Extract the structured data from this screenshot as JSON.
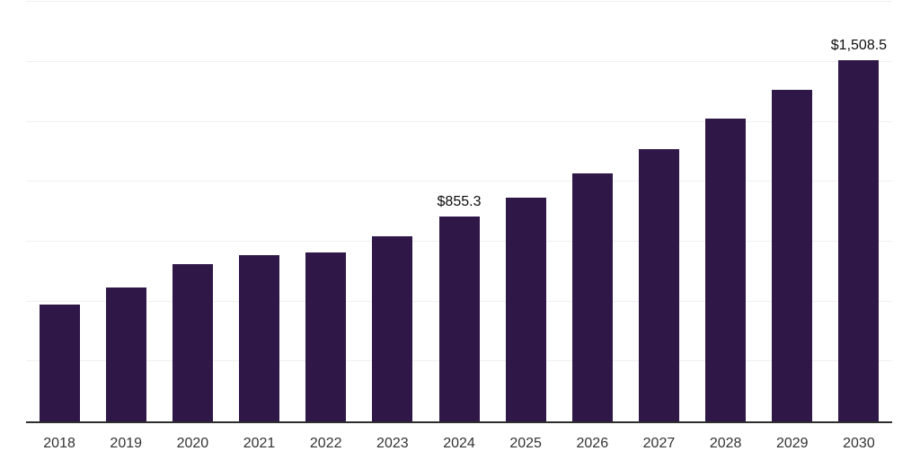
{
  "chart_data": {
    "type": "bar",
    "title": "",
    "xlabel": "",
    "ylabel": "",
    "categories": [
      "2018",
      "2019",
      "2020",
      "2021",
      "2022",
      "2023",
      "2024",
      "2025",
      "2026",
      "2027",
      "2028",
      "2029",
      "2030"
    ],
    "values": [
      487,
      560,
      657,
      695,
      705,
      774,
      855.3,
      934,
      1033,
      1137,
      1265,
      1383,
      1508.5
    ],
    "data_labels": {
      "2024": "$855.3",
      "2030": "$1,508.5"
    },
    "ylim": [
      0,
      1758
    ],
    "gridline_interval": 250,
    "grid": "horizontal, y-axis tick labels hidden",
    "legend_position": "none",
    "colors": {
      "bar": "#2f1747",
      "gridline": "#f0f0f0",
      "axis_line": "#2e2e2e",
      "x_tick_label": "#333333",
      "data_label": "#0d0d0d",
      "background": "#ffffff"
    }
  }
}
